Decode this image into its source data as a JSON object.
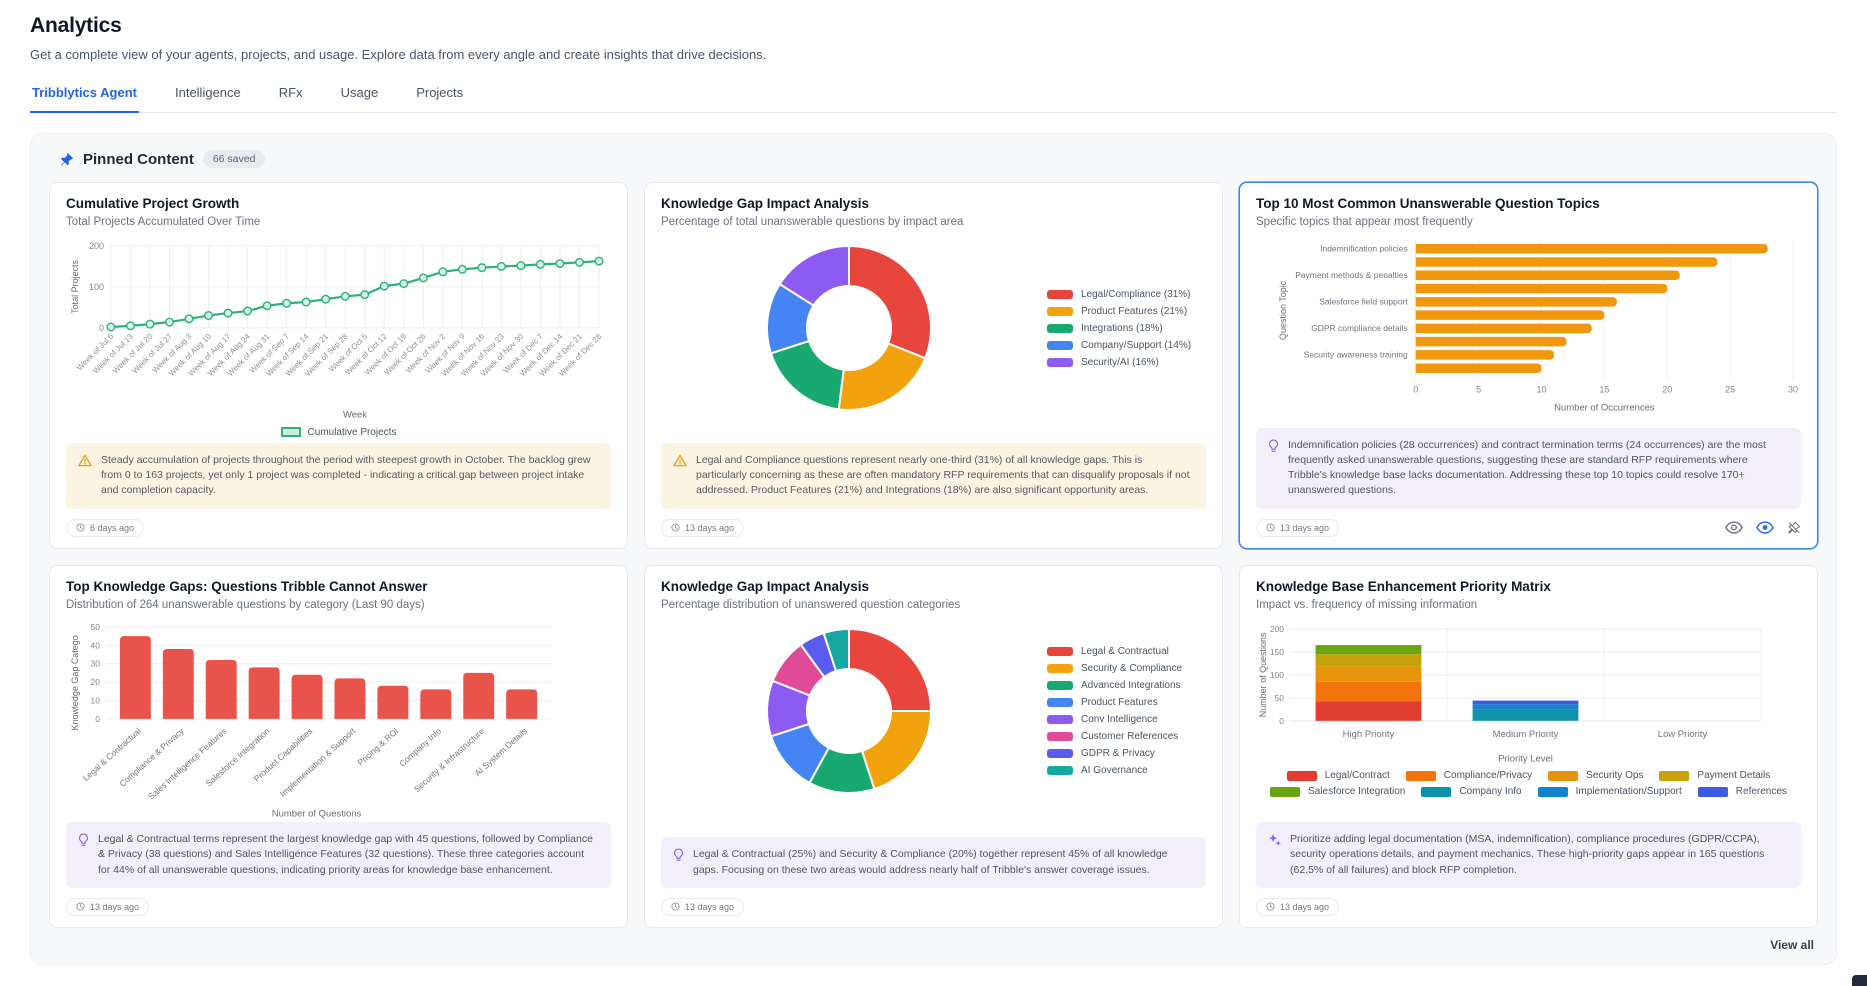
{
  "page": {
    "title": "Analytics",
    "subtitle": "Get a complete view of your agents, projects, and usage. Explore data from every angle and create insights that drive decisions."
  },
  "tabs": [
    {
      "label": "Tribblytics Agent",
      "active": true
    },
    {
      "label": "Intelligence",
      "active": false
    },
    {
      "label": "RFx",
      "active": false
    },
    {
      "label": "Usage",
      "active": false
    },
    {
      "label": "Projects",
      "active": false
    }
  ],
  "pinned": {
    "title": "Pinned Content",
    "badge": "66 saved",
    "pin_icon": "pin-icon",
    "view_all": "View all"
  },
  "colors": {
    "accent_blue": "#2563eb",
    "selected_card_border": "#4285f4",
    "warning_icon": "#f0a115",
    "insight_icon": "#8b5cf6",
    "warning_bg": "#fcf4e2",
    "insight_bg": "#f2effb",
    "panel_bg": "#f8f9fb"
  },
  "cards": [
    {
      "title": "Cumulative Project Growth",
      "subtitle": "Total Projects Accumulated Over Time",
      "message": {
        "type": "warning",
        "icon": "warning-icon",
        "text": "Steady accumulation of projects throughout the period with steepest growth in October. The backlog grew from 0 to 163 projects, yet only 1 project was completed - indicating a critical gap between project intake and completion capacity."
      },
      "timestamp": "6 days ago"
    },
    {
      "title": "Knowledge Gap Impact Analysis",
      "subtitle": "Percentage of total unanswerable questions by impact area",
      "message": {
        "type": "warning",
        "icon": "warning-icon",
        "text": "Legal and Compliance questions represent nearly one-third (31%) of all knowledge gaps. This is particularly concerning as these are often mandatory RFP requirements that can disqualify proposals if not addressed. Product Features (21%) and Integrations (18%) are also significant opportunity areas."
      },
      "timestamp": "13 days ago"
    },
    {
      "title": "Top 10 Most Common Unanswerable Question Topics",
      "subtitle": "Specific topics that appear most frequently",
      "selected": true,
      "message": {
        "type": "insight",
        "icon": "lightbulb-icon",
        "text": "Indemnification policies (28 occurrences) and contract termination terms (24 occurrences) are the most frequently asked unanswerable questions, suggesting these are standard RFP requirements where Tribble's knowledge base lacks documentation. Addressing these top 10 topics could resolve 170+ unanswered questions."
      },
      "timestamp": "13 days ago",
      "actions": [
        "eye-icon",
        "eye-active-icon",
        "unpin-icon"
      ]
    },
    {
      "title": "Top Knowledge Gaps: Questions Tribble Cannot Answer",
      "subtitle": "Distribution of 264 unanswerable questions by category (Last 90 days)",
      "message": {
        "type": "insight",
        "icon": "lightbulb-icon",
        "text": "Legal & Contractual terms represent the largest knowledge gap with 45 questions, followed by Compliance & Privacy (38 questions) and Sales Intelligence Features (32 questions). These three categories account for 44% of all unanswerable questions, indicating priority areas for knowledge base enhancement."
      },
      "timestamp": "13 days ago"
    },
    {
      "title": "Knowledge Gap Impact Analysis",
      "subtitle": "Percentage distribution of unanswered question categories",
      "message": {
        "type": "insight",
        "icon": "lightbulb-icon",
        "text": "Legal & Contractual (25%) and Security & Compliance (20%) together represent 45% of all knowledge gaps. Focusing on these two areas would address nearly half of Tribble's answer coverage issues."
      },
      "timestamp": "13 days ago"
    },
    {
      "title": "Knowledge Base Enhancement Priority Matrix",
      "subtitle": "Impact vs. frequency of missing information",
      "message": {
        "type": "insight",
        "icon": "sparkles-icon",
        "text": "Prioritize adding legal documentation (MSA, indemnification), compliance procedures (GDPR/CCPA), security operations details, and payment mechanics. These high-priority gaps appear in 165 questions (62.5% of all failures) and block RFP completion."
      },
      "timestamp": "13 days ago"
    }
  ],
  "chart_data": [
    {
      "type": "line",
      "title": "Cumulative Project Growth",
      "x": [
        "Week of Jul 6",
        "Week of Jul 13",
        "Week of Jul 20",
        "Week of Jul 27",
        "Week of Aug 3",
        "Week of Aug 10",
        "Week of Aug 17",
        "Week of Aug 24",
        "Week of Aug 31",
        "Week of Sep 7",
        "Week of Sep 14",
        "Week of Sep 21",
        "Week of Sep 28",
        "Week of Oct 5",
        "Week of Oct 12",
        "Week of Oct 19",
        "Week of Oct 26",
        "Week of Nov 2",
        "Week of Nov 9",
        "Week of Nov 16",
        "Week of Nov 23",
        "Week of Nov 30",
        "Week of Dec 7",
        "Week of Dec 14",
        "Week of Dec 21",
        "Week of Dec 28"
      ],
      "series": [
        {
          "name": "Cumulative Projects",
          "values": [
            2,
            5,
            9,
            14,
            22,
            30,
            36,
            41,
            54,
            60,
            63,
            70,
            77,
            81,
            102,
            108,
            122,
            137,
            143,
            147,
            150,
            152,
            155,
            157,
            160,
            163
          ]
        }
      ],
      "xlabel": "Week",
      "ylabel": "Total Projects",
      "ylim": [
        0,
        200
      ],
      "yticks": [
        0,
        100,
        200
      ],
      "grid": true,
      "legend_position": "bottom",
      "color": "#2bb179"
    },
    {
      "type": "pie",
      "donut": true,
      "title": "Knowledge Gap Impact Analysis",
      "labels": [
        "Legal/Compliance (31%)",
        "Product Features (21%)",
        "Integrations (18%)",
        "Company/Support (14%)",
        "Security/AI (16%)"
      ],
      "values": [
        31,
        21,
        18,
        14,
        16
      ],
      "colors": [
        "#e8453c",
        "#f2a20d",
        "#18a971",
        "#4484f3",
        "#8d5bf2"
      ],
      "legend_position": "right"
    },
    {
      "type": "bar",
      "orientation": "horizontal",
      "title": "Top 10 Most Common Unanswerable Question Topics",
      "categories": [
        "Indemnification policies",
        "",
        "Payment methods & penalties",
        "",
        "Salesforce field support",
        "",
        "GDPR compliance details",
        "",
        "Security awareness training",
        ""
      ],
      "values": [
        28,
        24,
        21,
        20,
        16,
        15,
        14,
        12,
        11,
        10
      ],
      "xlabel": "Number of Occurrences",
      "ylabel": "Question Topic",
      "xlim": [
        0,
        30
      ],
      "xticks": [
        0,
        5,
        10,
        15,
        20,
        25,
        30
      ],
      "grid": true,
      "color": "#f0980d"
    },
    {
      "type": "bar",
      "orientation": "vertical",
      "title": "Top Knowledge Gaps: Questions Tribble Cannot Answer",
      "categories": [
        "Legal & Contractual",
        "Compliance & Privacy",
        "Sales Intelligence Features",
        "Salesforce Integration",
        "Product Capabilities",
        "Implementation & Support",
        "Pricing & ROI",
        "Company Info",
        "Security & Infrastructure",
        "AI System Details"
      ],
      "values": [
        45,
        38,
        32,
        28,
        24,
        22,
        18,
        16,
        25,
        16
      ],
      "xlabel": "Number of Questions",
      "ylabel": "Knowledge Gap Catego",
      "ylim": [
        0,
        50
      ],
      "yticks": [
        0,
        10,
        20,
        30,
        40,
        50
      ],
      "grid": true,
      "color": "#e8534b"
    },
    {
      "type": "pie",
      "donut": true,
      "title": "Knowledge Gap Impact Analysis",
      "labels": [
        "Legal & Contractual",
        "Security & Compliance",
        "Advanced Integrations",
        "Product Features",
        "Conv Intelligence",
        "Customer References",
        "GDPR & Privacy",
        "AI Governance"
      ],
      "values": [
        25,
        20,
        13,
        12,
        11,
        9,
        5,
        5
      ],
      "colors": [
        "#e8453c",
        "#f2a20d",
        "#18a971",
        "#4484f3",
        "#8d5bf2",
        "#e04a98",
        "#5b5bef",
        "#16a8a0"
      ],
      "legend_position": "right"
    },
    {
      "type": "stacked-bar",
      "title": "Knowledge Base Enhancement Priority Matrix",
      "categories": [
        "High Priority",
        "Medium Priority",
        "Low Priority"
      ],
      "series": [
        {
          "name": "Legal/Contract",
          "color": "#e23d32",
          "values": [
            42,
            0,
            0
          ]
        },
        {
          "name": "Compliance/Privacy",
          "color": "#f4740c",
          "values": [
            43,
            0,
            0
          ]
        },
        {
          "name": "Security Ops",
          "color": "#e8930c",
          "values": [
            33,
            0,
            0
          ]
        },
        {
          "name": "Payment Details",
          "color": "#c9a20b",
          "values": [
            27,
            0,
            0
          ]
        },
        {
          "name": "Salesforce Integration",
          "color": "#6aa412",
          "values": [
            20,
            0,
            0
          ]
        },
        {
          "name": "Company Info",
          "color": "#0f93a8",
          "values": [
            0,
            24,
            0
          ]
        },
        {
          "name": "Implementation/Support",
          "color": "#1583cc",
          "values": [
            0,
            12,
            0
          ]
        },
        {
          "name": "References",
          "color": "#3d5be0",
          "values": [
            0,
            8,
            0
          ]
        }
      ],
      "xlabel": "Priority Level",
      "ylabel": "Number of Questions",
      "ylim": [
        0,
        200
      ],
      "yticks": [
        0,
        50,
        100,
        150,
        200
      ],
      "grid": true,
      "legend_position": "bottom"
    }
  ]
}
